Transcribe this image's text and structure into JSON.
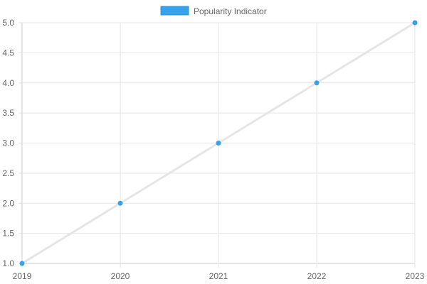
{
  "chart_data": {
    "type": "line",
    "x": [
      "2019",
      "2020",
      "2021",
      "2022",
      "2023"
    ],
    "series": [
      {
        "name": "Popularity Indicator",
        "values": [
          1.0,
          2.0,
          3.0,
          4.0,
          5.0
        ],
        "line_color": "#e6e6e6",
        "point_color": "#36a2eb",
        "legend_fill": "#36a2eb"
      }
    ],
    "x_tick_labels": [
      "2019",
      "2020",
      "2021",
      "2022",
      "2023"
    ],
    "y_tick_labels": [
      "1.0",
      "1.5",
      "2.0",
      "2.5",
      "3.0",
      "3.5",
      "4.0",
      "4.5",
      "5.0"
    ],
    "ylim": [
      1.0,
      5.0
    ],
    "grid": true,
    "legend_position": "top-center",
    "title": "",
    "xlabel": "",
    "ylabel": ""
  }
}
